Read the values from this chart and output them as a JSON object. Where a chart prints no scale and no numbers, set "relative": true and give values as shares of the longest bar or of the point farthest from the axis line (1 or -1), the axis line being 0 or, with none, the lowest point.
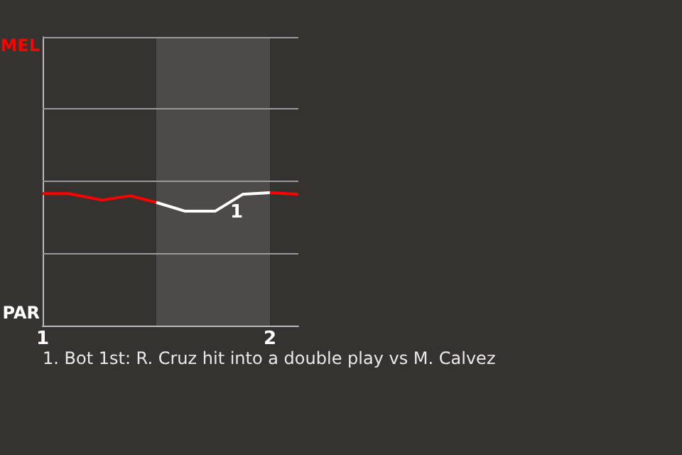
{
  "chart_data": {
    "type": "line",
    "relative": true,
    "series": [
      {
        "color": "#ff0000",
        "x": [
          1,
          1.114,
          1.26,
          1.385,
          1.5
        ],
        "values": [
          0.993,
          0.993,
          0.944,
          0.976,
          0.926
        ]
      },
      {
        "color": "#ffffff",
        "x": [
          1.5,
          1.625,
          1.76,
          1.88,
          2.0
        ],
        "values": [
          0.926,
          0.861,
          0.861,
          0.987,
          1
        ]
      },
      {
        "color": "#ff0000",
        "x": [
          2.0,
          2.125
        ],
        "values": [
          1,
          0.987
        ]
      }
    ],
    "xlim": [
      1,
      2.125
    ],
    "xticks": [
      1,
      2
    ],
    "marker": "none",
    "line_style": "solid",
    "ref_lines": [
      {
        "axis": "y",
        "value": 0.54,
        "color": "#999999"
      },
      {
        "axis": "y",
        "value": 1.09,
        "color": "#999999"
      },
      {
        "axis": "y",
        "value": 1.63,
        "color": "#999999"
      },
      {
        "axis": "y",
        "value": 2.17,
        "color": "#999999"
      }
    ],
    "bands": [
      {
        "axis": "x",
        "from": 1.5,
        "to": 2,
        "color": "#4d4b49"
      }
    ],
    "annotations": [
      "1",
      "MEL",
      "PAR",
      "1. Bot 1st: R. Cruz hit into a double play vs M. Calvez"
    ]
  }
}
